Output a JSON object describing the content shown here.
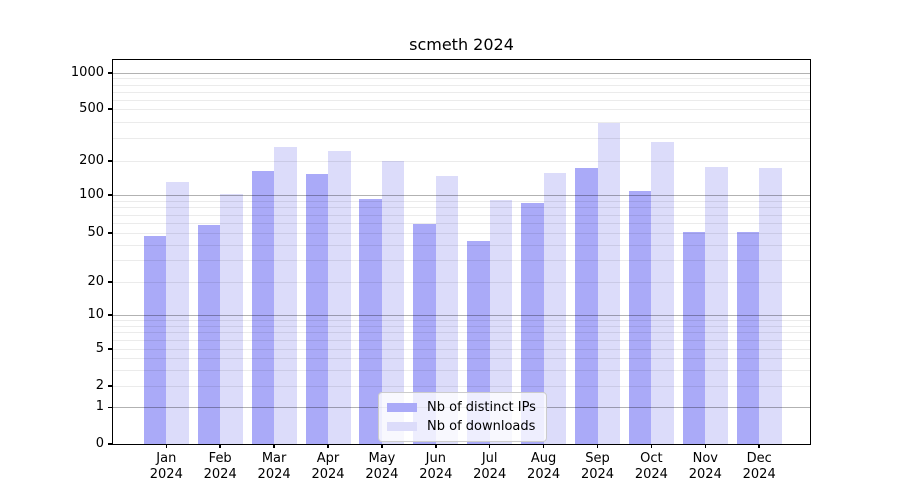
{
  "chart_data": {
    "type": "bar",
    "title": "scmeth 2024",
    "categories": [
      "Jan 2024",
      "Feb 2024",
      "Mar 2024",
      "Apr 2024",
      "May 2024",
      "Jun 2024",
      "Jul 2024",
      "Aug 2024",
      "Sep 2024",
      "Oct 2024",
      "Nov 2024",
      "Dec 2024"
    ],
    "month_labels": [
      "Jan",
      "Feb",
      "Mar",
      "Apr",
      "May",
      "Jun",
      "Jul",
      "Aug",
      "Sep",
      "Oct",
      "Nov",
      "Dec"
    ],
    "year_label": "2024",
    "series": [
      {
        "name": "Nb of distinct IPs",
        "color": "#aaaaf8",
        "values": [
          47,
          58,
          164,
          153,
          93,
          59,
          43,
          87,
          174,
          108,
          51,
          51
        ]
      },
      {
        "name": "Nb of downloads",
        "color": "#dcdcfa",
        "values": [
          131,
          102,
          258,
          240,
          200,
          148,
          92,
          156,
          388,
          281,
          176,
          174
        ]
      }
    ],
    "xlabel": "",
    "ylabel": "",
    "yscale": "symlog",
    "ylim": [
      0,
      1300
    ],
    "y_ticks": [
      0,
      1,
      2,
      5,
      10,
      20,
      50,
      100,
      200,
      500,
      1000
    ],
    "y_tick_labels": [
      "0",
      "1",
      "2",
      "5",
      "10",
      "20",
      "50",
      "100",
      "200",
      "500",
      "1000"
    ],
    "grid": "horizontal, log decades major + 2-9 minors, drawn over bars",
    "legend_position": "lower center"
  },
  "colors": {
    "background": "#ffffff",
    "bar_distinct_ips": "#aaaaf8",
    "bar_downloads": "#dcdcfa",
    "grid_major": "rgba(0,0,0,0.30)",
    "grid_minor": "rgba(0,0,0,0.08)",
    "spine": "#000000",
    "legend_border": "#cccccc"
  }
}
